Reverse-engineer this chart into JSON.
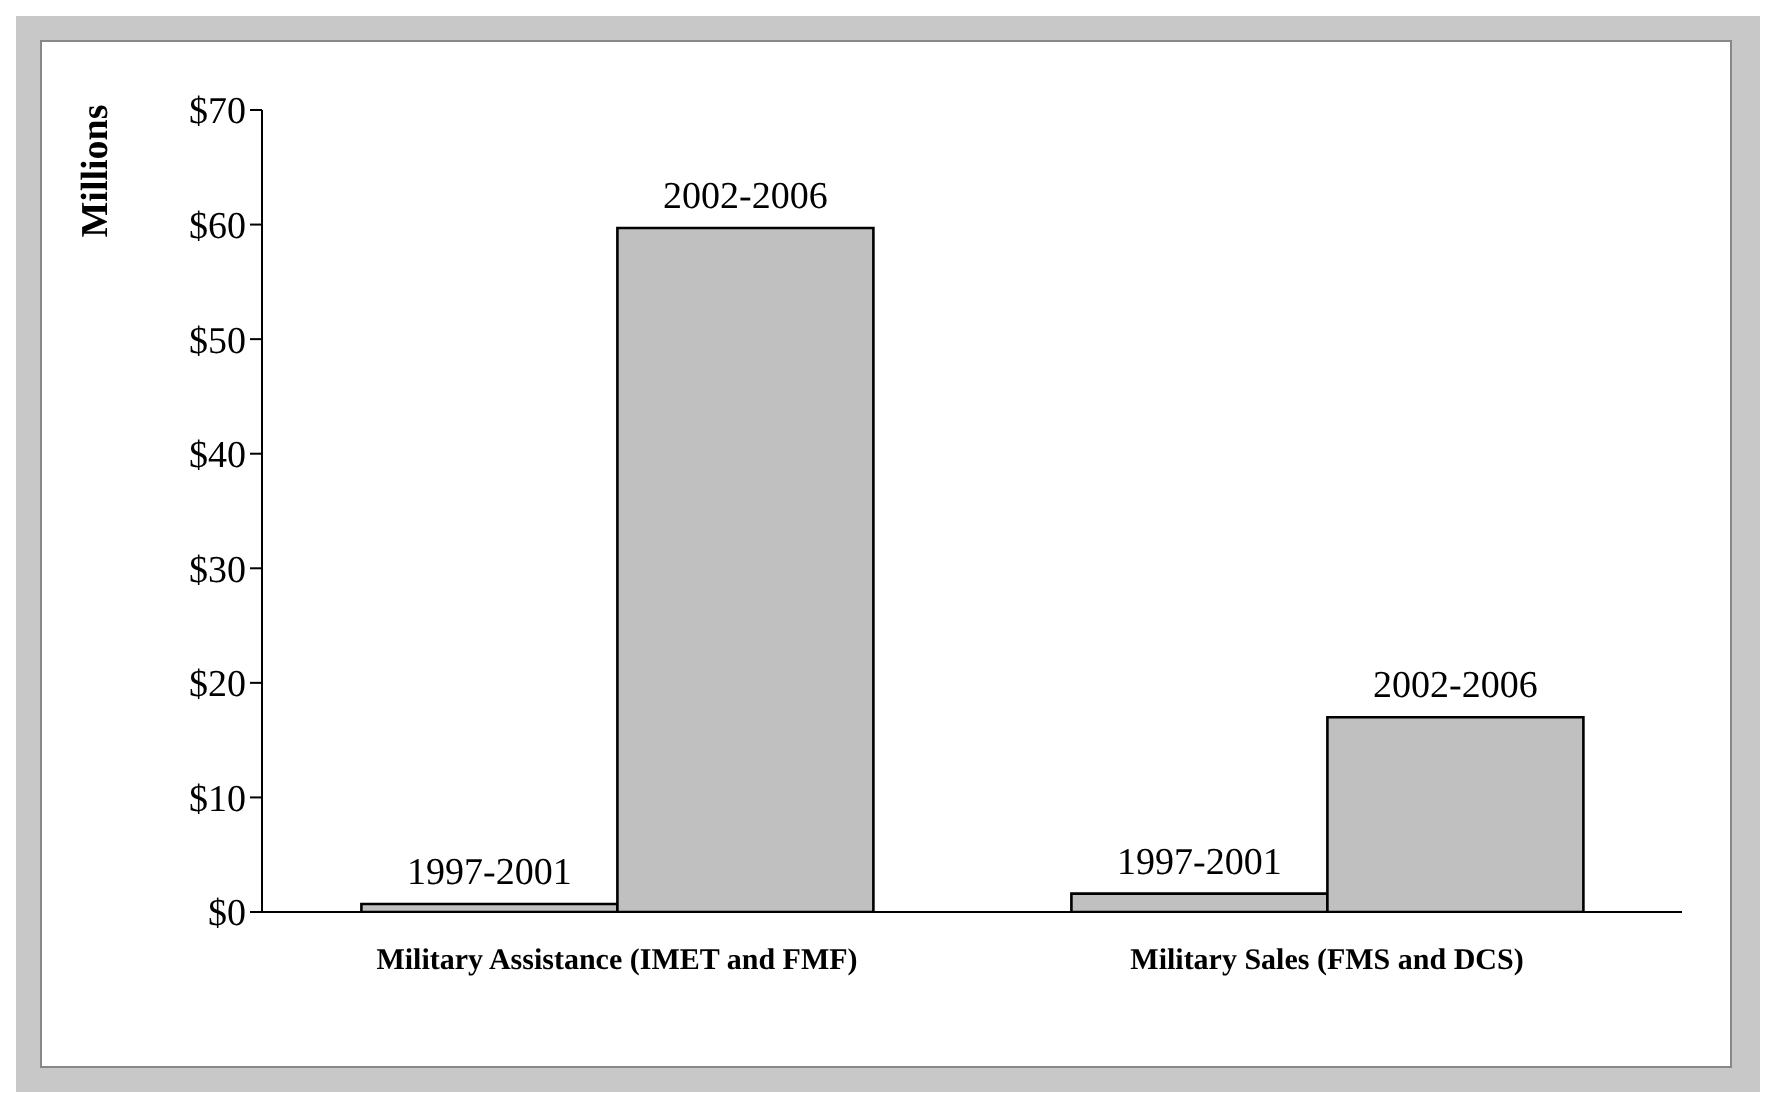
{
  "chart_data": {
    "type": "bar",
    "ylabel": "Millions",
    "categories": [
      "Military Assistance (IMET and FMF)",
      "Military Sales (FMS and DCS)"
    ],
    "series": [
      {
        "name": "1997-2001",
        "color": "#c0c0c0",
        "values": [
          0.7,
          1.6
        ]
      },
      {
        "name": "2002-2006",
        "color": "#c0c0c0",
        "values": [
          59.7,
          17
        ]
      }
    ],
    "ylim": [
      0,
      70
    ],
    "yticks": [
      {
        "value": 0,
        "label": "$0"
      },
      {
        "value": 10,
        "label": "$10"
      },
      {
        "value": 20,
        "label": "$20"
      },
      {
        "value": 30,
        "label": "$30"
      },
      {
        "value": 40,
        "label": "$40"
      },
      {
        "value": 50,
        "label": "$50"
      },
      {
        "value": 60,
        "label": "$60"
      },
      {
        "value": 70,
        "label": "$70"
      }
    ],
    "grid": false,
    "legend": false
  }
}
